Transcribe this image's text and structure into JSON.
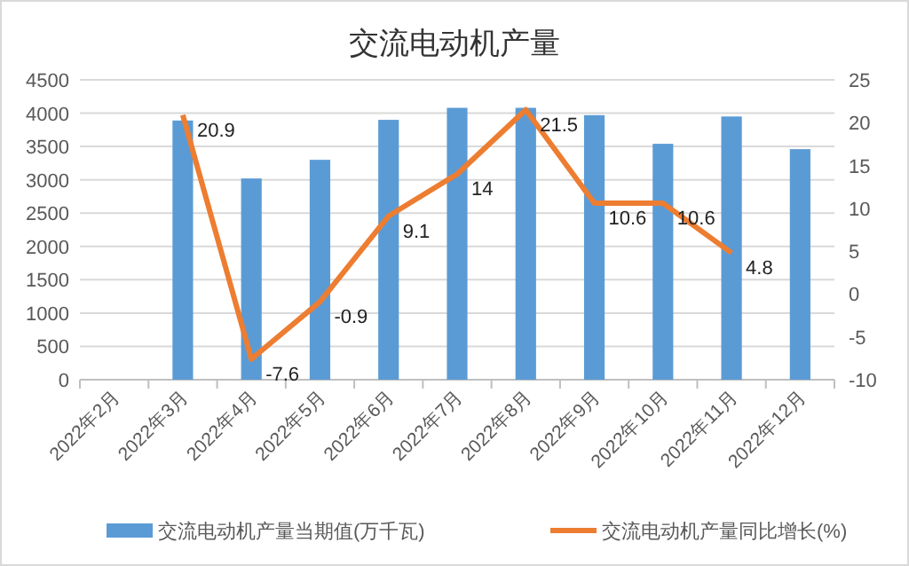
{
  "chart_data": {
    "type": "bar",
    "title": "交流电动机产量",
    "categories": [
      "2022年2月",
      "2022年3月",
      "2022年4月",
      "2022年5月",
      "2022年6月",
      "2022年7月",
      "2022年8月",
      "2022年9月",
      "2022年10月",
      "2022年11月",
      "2022年12月"
    ],
    "series": [
      {
        "name": "交流电动机产量当期值(万千瓦)",
        "color": "#5b9bd5",
        "values": [
          null,
          3890,
          3020,
          3300,
          3900,
          4080,
          4080,
          3970,
          3540,
          3950,
          3460
        ]
      },
      {
        "name": "交流电动机产量同比增长(%)",
        "type": "line",
        "axis": "y2",
        "color": "#ed7d31",
        "values": [
          null,
          20.9,
          -7.6,
          -0.9,
          9.1,
          14,
          21.5,
          10.6,
          10.6,
          4.8,
          null
        ],
        "value_labels": [
          null,
          "20.9",
          "-7.6",
          "-0.9",
          "9.1",
          "14",
          "21.5",
          "10.6",
          "10.6",
          "4.8",
          null
        ]
      }
    ],
    "ylim": [
      0,
      4500
    ],
    "yticks": [
      0,
      500,
      1000,
      1500,
      2000,
      2500,
      3000,
      3500,
      4000,
      4500
    ],
    "y2lim": [
      -10,
      25
    ],
    "y2ticks": [
      -10,
      -5,
      0,
      5,
      10,
      15,
      20,
      25
    ],
    "grid": "y",
    "legend": "bottom",
    "marker": "none"
  }
}
